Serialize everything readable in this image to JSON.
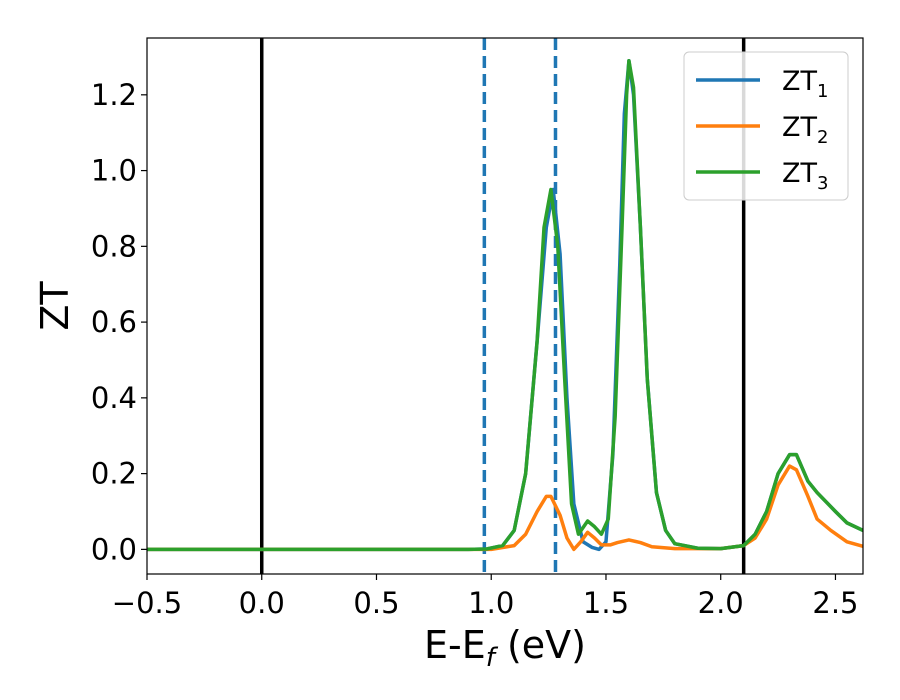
{
  "chart_data": {
    "type": "line",
    "xlabel": "E-E",
    "xlabel_sub": "f",
    "xlabel_unit": " (eV)",
    "ylabel": "ZT",
    "xlim": [
      -0.5,
      2.62
    ],
    "ylim": [
      -0.065,
      1.35
    ],
    "xticks": [
      -0.5,
      0.0,
      0.5,
      1.0,
      1.5,
      2.0,
      2.5
    ],
    "xtick_labels": [
      "−0.5",
      "0.0",
      "0.5",
      "1.0",
      "1.5",
      "2.0",
      "2.5"
    ],
    "yticks": [
      0.0,
      0.2,
      0.4,
      0.6,
      0.8,
      1.0,
      1.2
    ],
    "ytick_labels": [
      "0.0",
      "0.2",
      "0.4",
      "0.6",
      "0.8",
      "1.0",
      "1.2"
    ],
    "grid": false,
    "legend_position": "top-right",
    "vlines": [
      {
        "x": 0.0,
        "style": "solid",
        "color": "#000000"
      },
      {
        "x": 2.1,
        "style": "solid",
        "color": "#000000"
      },
      {
        "x": 0.97,
        "style": "dashed",
        "color": "#1f77b4"
      },
      {
        "x": 1.28,
        "style": "dashed",
        "color": "#1f77b4"
      }
    ],
    "series": [
      {
        "name": "ZT",
        "sub": "1",
        "color": "#1f77b4",
        "points": [
          [
            -0.5,
            0
          ],
          [
            0.9,
            0
          ],
          [
            0.98,
            0.001
          ],
          [
            1.05,
            0.01
          ],
          [
            1.1,
            0.05
          ],
          [
            1.15,
            0.2
          ],
          [
            1.2,
            0.55
          ],
          [
            1.24,
            0.85
          ],
          [
            1.27,
            0.95
          ],
          [
            1.3,
            0.78
          ],
          [
            1.33,
            0.4
          ],
          [
            1.36,
            0.12
          ],
          [
            1.4,
            0.02
          ],
          [
            1.44,
            0.005
          ],
          [
            1.47,
            0.0
          ],
          [
            1.5,
            0.02
          ],
          [
            1.53,
            0.25
          ],
          [
            1.56,
            0.75
          ],
          [
            1.58,
            1.15
          ],
          [
            1.6,
            1.29
          ],
          [
            1.62,
            1.2
          ],
          [
            1.65,
            0.85
          ],
          [
            1.68,
            0.45
          ],
          [
            1.72,
            0.15
          ],
          [
            1.76,
            0.05
          ],
          [
            1.8,
            0.015
          ],
          [
            1.9,
            0.003
          ],
          [
            2.0,
            0.002
          ],
          [
            2.1,
            0.01
          ],
          [
            2.15,
            0.04
          ],
          [
            2.2,
            0.1
          ],
          [
            2.25,
            0.2
          ],
          [
            2.3,
            0.25
          ],
          [
            2.33,
            0.25
          ],
          [
            2.38,
            0.18
          ],
          [
            2.42,
            0.15
          ],
          [
            2.5,
            0.1
          ],
          [
            2.55,
            0.07
          ],
          [
            2.62,
            0.05
          ]
        ]
      },
      {
        "name": "ZT",
        "sub": "2",
        "color": "#ff7f0e",
        "points": [
          [
            -0.5,
            0
          ],
          [
            1.0,
            0
          ],
          [
            1.1,
            0.01
          ],
          [
            1.15,
            0.04
          ],
          [
            1.2,
            0.1
          ],
          [
            1.24,
            0.14
          ],
          [
            1.26,
            0.14
          ],
          [
            1.3,
            0.09
          ],
          [
            1.33,
            0.03
          ],
          [
            1.36,
            0.0
          ],
          [
            1.39,
            0.02
          ],
          [
            1.42,
            0.045
          ],
          [
            1.45,
            0.03
          ],
          [
            1.48,
            0.012
          ],
          [
            1.52,
            0.012
          ],
          [
            1.55,
            0.018
          ],
          [
            1.6,
            0.025
          ],
          [
            1.65,
            0.018
          ],
          [
            1.7,
            0.007
          ],
          [
            1.8,
            0.002
          ],
          [
            2.0,
            0.002
          ],
          [
            2.1,
            0.01
          ],
          [
            2.15,
            0.03
          ],
          [
            2.2,
            0.08
          ],
          [
            2.25,
            0.17
          ],
          [
            2.3,
            0.22
          ],
          [
            2.33,
            0.21
          ],
          [
            2.38,
            0.14
          ],
          [
            2.42,
            0.08
          ],
          [
            2.48,
            0.05
          ],
          [
            2.55,
            0.02
          ],
          [
            2.62,
            0.008
          ]
        ]
      },
      {
        "name": "ZT",
        "sub": "3",
        "color": "#2ca02c",
        "points": [
          [
            -0.5,
            0
          ],
          [
            0.9,
            0
          ],
          [
            0.98,
            0.001
          ],
          [
            1.05,
            0.01
          ],
          [
            1.1,
            0.05
          ],
          [
            1.15,
            0.2
          ],
          [
            1.2,
            0.55
          ],
          [
            1.23,
            0.85
          ],
          [
            1.26,
            0.95
          ],
          [
            1.29,
            0.8
          ],
          [
            1.32,
            0.45
          ],
          [
            1.35,
            0.12
          ],
          [
            1.38,
            0.04
          ],
          [
            1.42,
            0.075
          ],
          [
            1.45,
            0.06
          ],
          [
            1.48,
            0.04
          ],
          [
            1.51,
            0.08
          ],
          [
            1.54,
            0.35
          ],
          [
            1.57,
            0.85
          ],
          [
            1.59,
            1.2
          ],
          [
            1.6,
            1.29
          ],
          [
            1.62,
            1.22
          ],
          [
            1.65,
            0.85
          ],
          [
            1.68,
            0.45
          ],
          [
            1.72,
            0.15
          ],
          [
            1.76,
            0.05
          ],
          [
            1.8,
            0.015
          ],
          [
            1.9,
            0.003
          ],
          [
            2.0,
            0.002
          ],
          [
            2.1,
            0.01
          ],
          [
            2.15,
            0.04
          ],
          [
            2.2,
            0.1
          ],
          [
            2.25,
            0.2
          ],
          [
            2.3,
            0.25
          ],
          [
            2.33,
            0.25
          ],
          [
            2.38,
            0.18
          ],
          [
            2.42,
            0.15
          ],
          [
            2.5,
            0.1
          ],
          [
            2.55,
            0.07
          ],
          [
            2.62,
            0.05
          ]
        ]
      }
    ]
  }
}
